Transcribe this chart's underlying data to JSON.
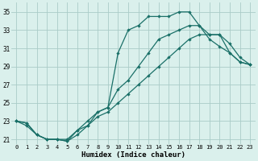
{
  "xlabel": "Humidex (Indice chaleur)",
  "bg_color": "#daf0ec",
  "grid_color": "#aaccc8",
  "line_color": "#1a7068",
  "xlim": [
    -0.5,
    23.5
  ],
  "ylim": [
    20.5,
    36
  ],
  "xticks": [
    0,
    1,
    2,
    3,
    4,
    5,
    6,
    7,
    8,
    9,
    10,
    11,
    12,
    13,
    14,
    15,
    16,
    17,
    18,
    19,
    20,
    21,
    22,
    23
  ],
  "yticks": [
    21,
    23,
    25,
    27,
    29,
    31,
    33,
    35
  ],
  "line1_x": [
    0,
    1,
    2,
    3,
    4,
    5,
    6,
    7,
    8,
    9,
    10,
    11,
    12,
    13,
    14,
    15,
    16,
    17,
    18,
    19,
    20,
    21,
    22,
    23
  ],
  "line1_y": [
    23,
    22.8,
    21.5,
    21.0,
    21.0,
    20.8,
    21.5,
    22.5,
    24.0,
    24.5,
    30.5,
    33.0,
    33.5,
    34.5,
    34.5,
    34.5,
    35.0,
    35.0,
    33.5,
    32.0,
    31.2,
    30.5,
    29.5,
    29.2
  ],
  "line2_x": [
    0,
    1,
    2,
    3,
    4,
    5,
    6,
    7,
    8,
    9,
    10,
    11,
    12,
    13,
    14,
    15,
    16,
    17,
    18,
    19,
    20,
    21,
    22,
    23
  ],
  "line2_y": [
    23,
    22.8,
    21.5,
    21.0,
    21.0,
    20.8,
    22.0,
    23.0,
    24.0,
    24.5,
    26.5,
    27.5,
    29.0,
    30.5,
    32.0,
    32.5,
    33.0,
    33.5,
    33.5,
    32.5,
    32.5,
    31.5,
    30.0,
    29.2
  ],
  "line3_x": [
    0,
    1,
    2,
    3,
    4,
    5,
    6,
    7,
    8,
    9,
    10,
    11,
    12,
    13,
    14,
    15,
    16,
    17,
    18,
    19,
    20,
    21,
    22,
    23
  ],
  "line3_y": [
    23,
    22.5,
    21.5,
    21.0,
    21.0,
    21.0,
    22.0,
    22.5,
    23.5,
    24.0,
    25.0,
    26.0,
    27.0,
    28.0,
    29.0,
    30.0,
    31.0,
    32.0,
    32.5,
    32.5,
    32.5,
    30.5,
    29.5,
    29.2
  ]
}
